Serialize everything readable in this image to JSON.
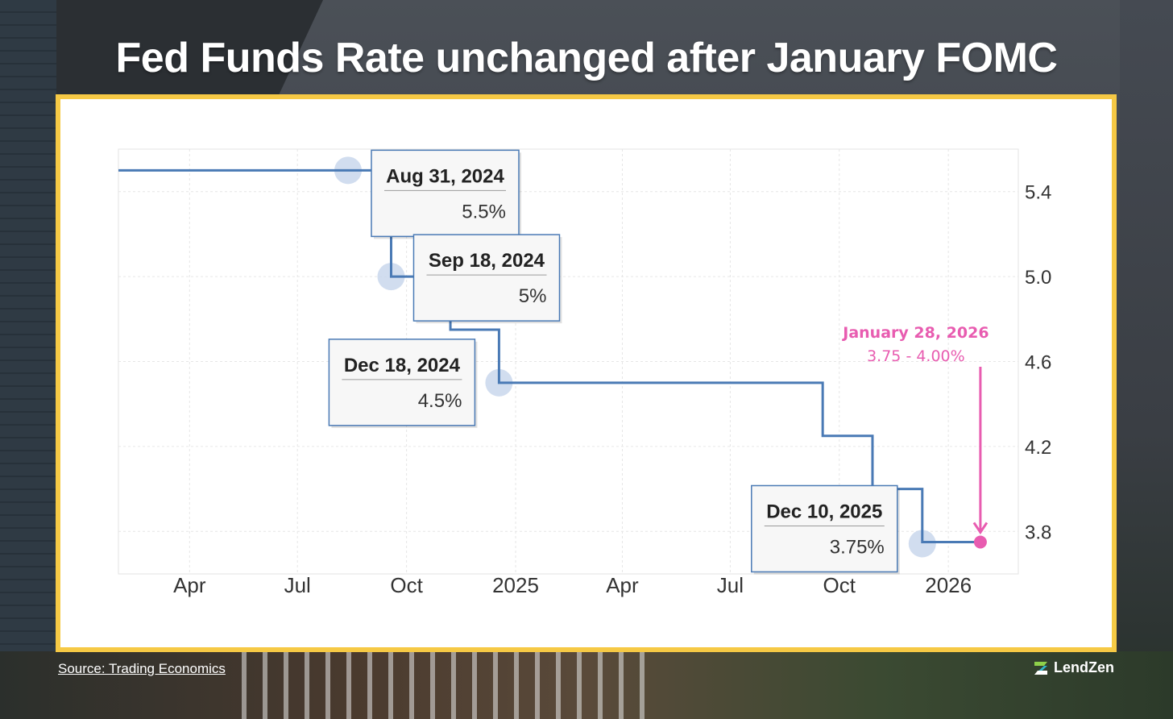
{
  "header": {
    "title": "Fed Funds Rate unchanged after January FOMC"
  },
  "footer": {
    "source": "Source: Trading Economics",
    "brand": "LendZen"
  },
  "colors": {
    "frame": "#f6c945",
    "line": "#4a7ab5",
    "marker": "#c9d7ec",
    "annotation": "#e85cb0"
  },
  "chart_data": {
    "type": "line",
    "title": "",
    "xlabel": "",
    "ylabel": "",
    "x_ticks": [
      "Apr",
      "Jul",
      "Oct",
      "2025",
      "Apr",
      "Jul",
      "Oct",
      "2026"
    ],
    "x_tick_dates": [
      "2024-04-01",
      "2024-07-01",
      "2024-10-01",
      "2025-01-01",
      "2025-04-01",
      "2025-07-01",
      "2025-10-01",
      "2026-01-01"
    ],
    "y_ticks": [
      "5.4",
      "5.0",
      "4.6",
      "4.2",
      "3.8"
    ],
    "y_tick_values": [
      5.4,
      5.0,
      4.6,
      4.2,
      3.8
    ],
    "ylim": [
      3.6,
      5.6
    ],
    "xlim": [
      "2024-02-01",
      "2026-03-01"
    ],
    "grid": true,
    "series": [
      {
        "x": [
          "2024-02-01",
          "2024-08-31",
          "2024-09-18",
          "2024-11-07",
          "2024-12-18",
          "2025-09-17",
          "2025-10-29",
          "2025-12-10",
          "2026-01-28"
        ],
        "y": [
          5.5,
          5.5,
          5.0,
          4.75,
          4.5,
          4.25,
          4.0,
          3.75,
          3.75
        ]
      }
    ],
    "tooltips": [
      {
        "date": "Aug 31, 2024",
        "value": "5.5%"
      },
      {
        "date": "Sep 18, 2024",
        "value": "5%"
      },
      {
        "date": "Dec 18, 2024",
        "value": "4.5%"
      },
      {
        "date": "Dec 10, 2025",
        "value": "3.75%"
      }
    ],
    "annotation": {
      "date": "January 28, 2026",
      "value": "3.75 - 4.00%"
    }
  }
}
